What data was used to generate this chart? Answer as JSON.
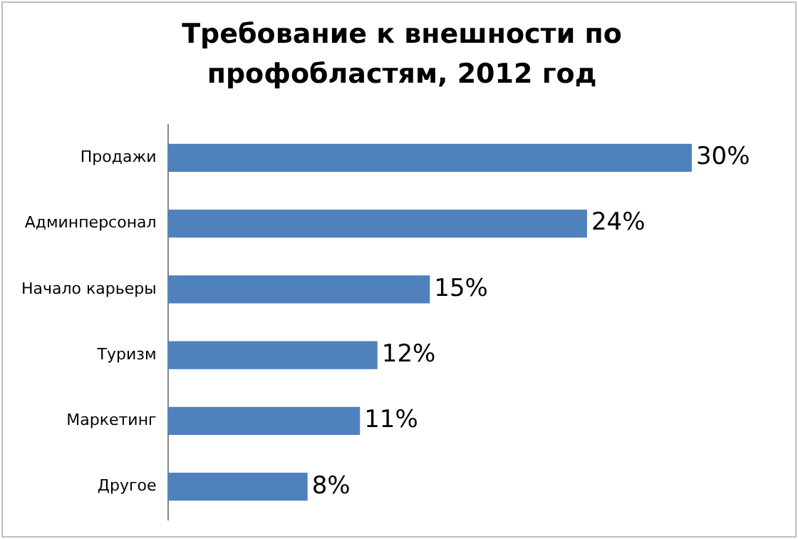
{
  "chart_data": {
    "type": "bar",
    "orientation": "horizontal",
    "title": "Требование к внешности по профобластям, 2012 год",
    "categories": [
      "Продажи",
      "Админперсонал",
      "Начало карьеры",
      "Туризм",
      "Маркетинг",
      "Другое"
    ],
    "values": [
      30,
      24,
      15,
      12,
      11,
      8
    ],
    "value_labels": [
      "30%",
      "24%",
      "15%",
      "12%",
      "11%",
      "8%"
    ],
    "color": "#4f81bd"
  }
}
